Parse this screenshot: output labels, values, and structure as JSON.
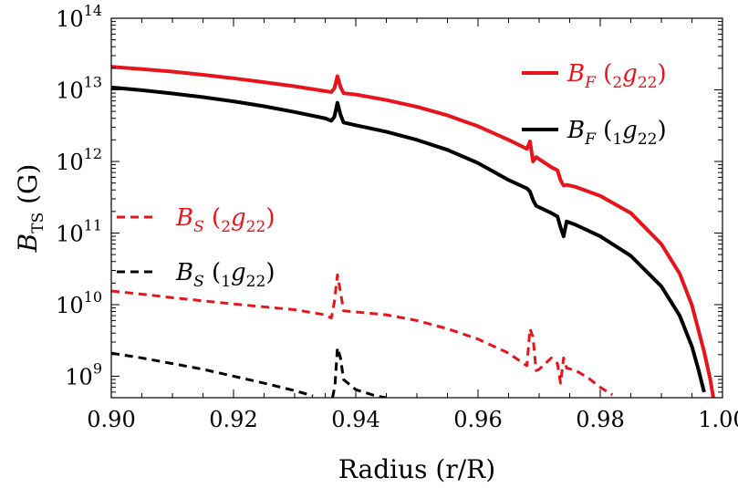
{
  "chart_data": {
    "type": "line",
    "xlabel": "Radius (r/R)",
    "ylabel_main": "B",
    "ylabel_sub": "TS",
    "ylabel_unit": "(G)",
    "xlim": [
      0.9,
      1.0
    ],
    "ylog_exp_range": [
      8.7,
      14
    ],
    "yscale": "log",
    "grid": false,
    "x_ticks": [
      "0.90",
      "0.92",
      "0.94",
      "0.96",
      "0.98",
      "1.00"
    ],
    "y_ticks": [
      {
        "exp": 9,
        "base": "10",
        "power": "9"
      },
      {
        "exp": 10,
        "base": "10",
        "power": "10"
      },
      {
        "exp": 11,
        "base": "10",
        "power": "11"
      },
      {
        "exp": 12,
        "base": "10",
        "power": "12"
      },
      {
        "exp": 13,
        "base": "10",
        "power": "13"
      },
      {
        "exp": 14,
        "base": "10",
        "power": "14"
      }
    ],
    "series": [
      {
        "name": "B_F (2g22)",
        "legend": {
          "var": "B",
          "var_sub": "F",
          "pre_sub": "2",
          "g": "g",
          "g_sub": "22"
        },
        "color": "#e8141b",
        "dash": "solid",
        "points": [
          [
            0.9,
            21000000000000.0
          ],
          [
            0.905,
            19500000000000.0
          ],
          [
            0.91,
            18000000000000.0
          ],
          [
            0.915,
            16200000000000.0
          ],
          [
            0.92,
            14500000000000.0
          ],
          [
            0.925,
            12800000000000.0
          ],
          [
            0.93,
            11200000000000.0
          ],
          [
            0.935,
            9600000000000.0
          ],
          [
            0.936,
            9300000000000.0
          ],
          [
            0.9365,
            10500000000000.0
          ],
          [
            0.937,
            15500000000000.0
          ],
          [
            0.9375,
            11000000000000.0
          ],
          [
            0.938,
            9000000000000.0
          ],
          [
            0.94,
            8600000000000.0
          ],
          [
            0.945,
            7200000000000.0
          ],
          [
            0.95,
            5800000000000.0
          ],
          [
            0.955,
            4400000000000.0
          ],
          [
            0.96,
            3100000000000.0
          ],
          [
            0.965,
            2000000000000.0
          ],
          [
            0.968,
            1500000000000.0
          ],
          [
            0.9685,
            1900000000000.0
          ],
          [
            0.969,
            1000000000000.0
          ],
          [
            0.9695,
            1150000000000.0
          ],
          [
            0.972,
            830000000000.0
          ],
          [
            0.973,
            750000000000.0
          ],
          [
            0.9735,
            550000000000.0
          ],
          [
            0.974,
            460000000000.0
          ],
          [
            0.9745,
            470000000000.0
          ],
          [
            0.976,
            440000000000.0
          ],
          [
            0.98,
            330000000000.0
          ],
          [
            0.985,
            190000000000.0
          ],
          [
            0.99,
            70000000000.0
          ],
          [
            0.993,
            27000000000.0
          ],
          [
            0.995,
            9800000000.0
          ],
          [
            0.997,
            2200000000.0
          ],
          [
            0.998,
            900000000.0
          ],
          [
            0.9985,
            500000000.0
          ]
        ]
      },
      {
        "name": "B_F (1g22)",
        "legend": {
          "var": "B",
          "var_sub": "F",
          "pre_sub": "1",
          "g": "g",
          "g_sub": "22"
        },
        "color": "#000000",
        "dash": "solid",
        "points": [
          [
            0.9,
            10800000000000.0
          ],
          [
            0.905,
            9900000000000.0
          ],
          [
            0.91,
            8900000000000.0
          ],
          [
            0.915,
            7900000000000.0
          ],
          [
            0.92,
            6900000000000.0
          ],
          [
            0.925,
            5900000000000.0
          ],
          [
            0.93,
            4900000000000.0
          ],
          [
            0.935,
            4000000000000.0
          ],
          [
            0.936,
            3700000000000.0
          ],
          [
            0.9365,
            4200000000000.0
          ],
          [
            0.937,
            6600000000000.0
          ],
          [
            0.9375,
            4500000000000.0
          ],
          [
            0.938,
            3500000000000.0
          ],
          [
            0.94,
            3200000000000.0
          ],
          [
            0.945,
            2600000000000.0
          ],
          [
            0.95,
            2000000000000.0
          ],
          [
            0.955,
            1450000000000.0
          ],
          [
            0.96,
            950000000000.0
          ],
          [
            0.965,
            550000000000.0
          ],
          [
            0.968,
            420000000000.0
          ],
          [
            0.9685,
            380000000000.0
          ],
          [
            0.969,
            290000000000.0
          ],
          [
            0.9695,
            240000000000.0
          ],
          [
            0.972,
            190000000000.0
          ],
          [
            0.973,
            170000000000.0
          ],
          [
            0.9735,
            120000000000.0
          ],
          [
            0.974,
            90000000000.0
          ],
          [
            0.9745,
            145000000000.0
          ],
          [
            0.976,
            130000000000.0
          ],
          [
            0.98,
            90000000000.0
          ],
          [
            0.985,
            48000000000.0
          ],
          [
            0.99,
            18000000000.0
          ],
          [
            0.993,
            7000000000.0
          ],
          [
            0.995,
            2600000000.0
          ],
          [
            0.996,
            1300000000.0
          ],
          [
            0.997,
            600000000.0
          ]
        ]
      },
      {
        "name": "B_S (2g22)",
        "legend": {
          "var": "B",
          "var_sub": "S",
          "pre_sub": "2",
          "g": "g",
          "g_sub": "22"
        },
        "color": "#e8141b",
        "dash": "dashed",
        "points": [
          [
            0.9,
            15500000000.0
          ],
          [
            0.905,
            14000000000.0
          ],
          [
            0.91,
            12500000000.0
          ],
          [
            0.915,
            11300000000.0
          ],
          [
            0.92,
            10200000000.0
          ],
          [
            0.925,
            9300000000.0
          ],
          [
            0.93,
            8500000000.0
          ],
          [
            0.935,
            7200000000.0
          ],
          [
            0.936,
            6500000000.0
          ],
          [
            0.9365,
            11000000000.0
          ],
          [
            0.937,
            26000000000.0
          ],
          [
            0.9375,
            15000000000.0
          ],
          [
            0.938,
            8200000000.0
          ],
          [
            0.94,
            7900000000.0
          ],
          [
            0.945,
            7200000000.0
          ],
          [
            0.95,
            6000000000.0
          ],
          [
            0.955,
            4600000000.0
          ],
          [
            0.96,
            3300000000.0
          ],
          [
            0.965,
            2100000000.0
          ],
          [
            0.967,
            1600000000.0
          ],
          [
            0.968,
            1400000000.0
          ],
          [
            0.9685,
            4600000000.0
          ],
          [
            0.969,
            3500000000.0
          ],
          [
            0.9695,
            1200000000.0
          ],
          [
            0.97,
            1250000000.0
          ],
          [
            0.972,
            1800000000.0
          ],
          [
            0.973,
            1500000000.0
          ],
          [
            0.9735,
            800000000.0
          ],
          [
            0.974,
            1800000000.0
          ],
          [
            0.9745,
            1300000000.0
          ],
          [
            0.976,
            1200000000.0
          ],
          [
            0.978,
            950000000.0
          ],
          [
            0.98,
            700000000.0
          ],
          [
            0.982,
            550000000.0
          ]
        ]
      },
      {
        "name": "B_S (1g22)",
        "legend": {
          "var": "B",
          "var_sub": "S",
          "pre_sub": "1",
          "g": "g",
          "g_sub": "22"
        },
        "color": "#000000",
        "dash": "dashed",
        "points": [
          [
            0.9,
            2100000000.0
          ],
          [
            0.905,
            1800000000.0
          ],
          [
            0.91,
            1500000000.0
          ],
          [
            0.915,
            1250000000.0
          ],
          [
            0.92,
            1000000000.0
          ],
          [
            0.925,
            800000000.0
          ],
          [
            0.93,
            630000000.0
          ],
          [
            0.933,
            530000000.0
          ],
          null,
          [
            0.9362,
            500000000.0
          ],
          [
            0.9366,
            750000000.0
          ],
          [
            0.937,
            2500000000.0
          ],
          [
            0.9375,
            1800000000.0
          ],
          [
            0.938,
            900000000.0
          ],
          [
            0.94,
            650000000.0
          ],
          [
            0.943,
            540000000.0
          ],
          [
            0.945,
            500000000.0
          ]
        ]
      }
    ]
  }
}
